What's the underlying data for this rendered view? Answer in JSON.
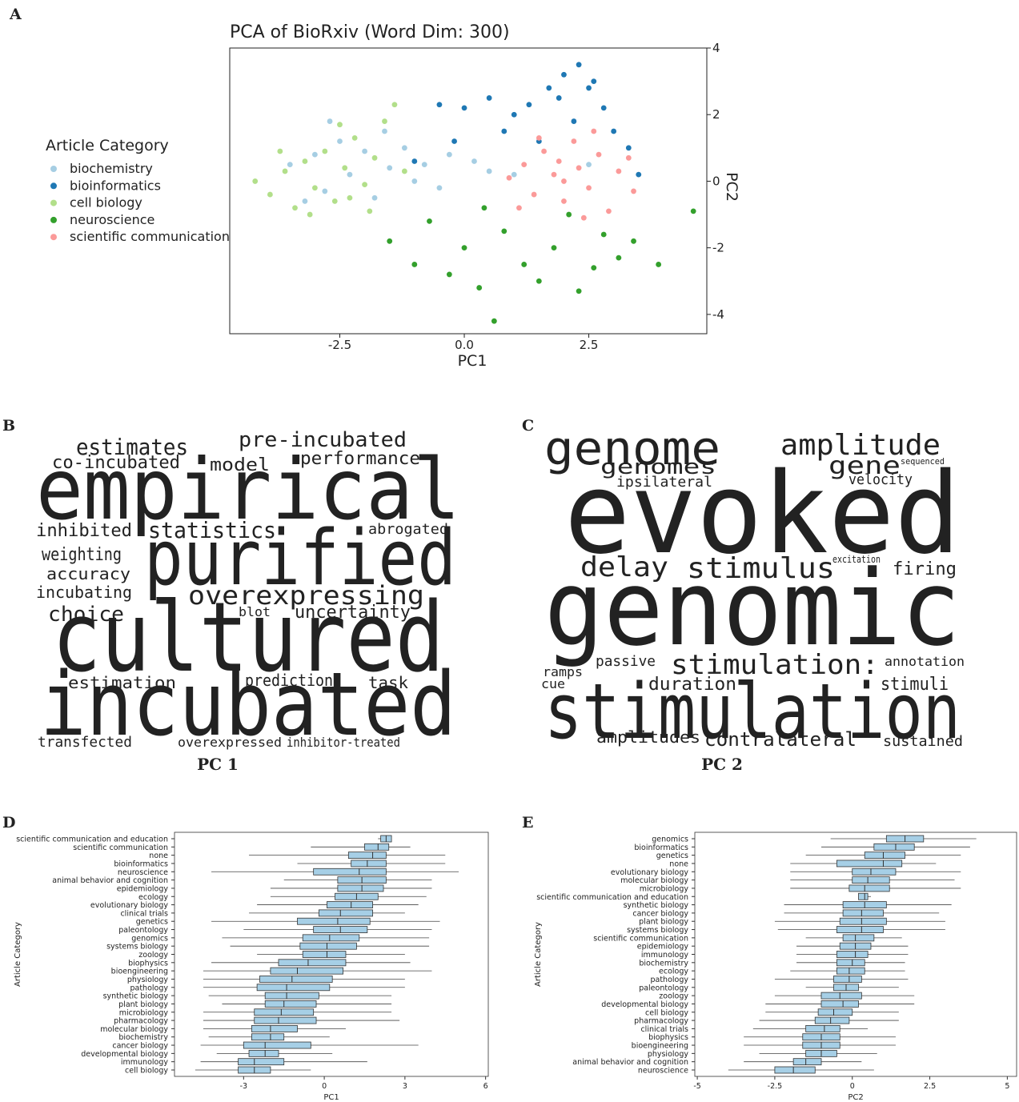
{
  "chart_data": [
    {
      "type": "scatter",
      "panel": "A",
      "title": "PCA of BioRxiv (Word Dim: 300)",
      "xlabel": "PC1",
      "ylabel": "PC2",
      "legend_title": "Article Category",
      "xlim": [
        -4.71,
        4.87
      ],
      "ylim": [
        -4.58,
        4.0
      ],
      "xticks": [
        -2.5,
        {
          "value": 0,
          "label": "0.0"
        },
        2.5
      ],
      "yticks": [
        4,
        2,
        0,
        -2,
        -4
      ],
      "series": [
        {
          "name": "biochemistry",
          "color": "#a6cee3",
          "x": [
            -3.5,
            -3.0,
            -2.8,
            -2.5,
            -2.3,
            -2.0,
            -1.8,
            -1.5,
            -1.2,
            -1.0,
            -0.8,
            -0.5,
            0.2,
            0.5,
            -2.7,
            -3.2,
            -1.6,
            -0.3,
            1.0,
            2.5
          ],
          "y": [
            0.5,
            0.8,
            -0.3,
            1.2,
            0.2,
            0.9,
            -0.5,
            0.4,
            1.0,
            0,
            0.5,
            -0.2,
            0.6,
            0.3,
            1.8,
            -0.6,
            1.5,
            0.8,
            0.2,
            0.5
          ]
        },
        {
          "name": "bioinformatics",
          "color": "#1f78b4",
          "x": [
            -0.5,
            0,
            0.5,
            1.0,
            1.3,
            1.7,
            2.0,
            2.3,
            2.5,
            2.8,
            3.0,
            3.3,
            2.2,
            1.5,
            0.8,
            -0.2,
            2.6,
            1.9,
            3.5,
            -1.0
          ],
          "y": [
            2.3,
            2.2,
            2.5,
            2.0,
            2.3,
            2.8,
            3.2,
            3.5,
            2.8,
            2.2,
            1.5,
            1.0,
            1.8,
            1.2,
            1.5,
            1.2,
            3.0,
            2.5,
            0.2,
            0.6
          ]
        },
        {
          "name": "cell biology",
          "color": "#b2df8a",
          "x": [
            -4.2,
            -3.9,
            -3.6,
            -3.4,
            -3.2,
            -3.0,
            -2.8,
            -2.6,
            -2.4,
            -2.2,
            -2.0,
            -1.8,
            -1.6,
            -1.4,
            -1.9,
            -3.7,
            -2.5,
            -1.2,
            -3.1,
            -2.3
          ],
          "y": [
            0,
            -0.4,
            0.3,
            -0.8,
            0.6,
            -0.2,
            0.9,
            -0.6,
            0.4,
            1.3,
            -0.1,
            0.7,
            1.8,
            2.3,
            -0.9,
            0.9,
            1.7,
            0.3,
            -1.0,
            -0.5
          ]
        },
        {
          "name": "neuroscience",
          "color": "#33a02c",
          "x": [
            -1.5,
            -1.0,
            -0.7,
            -0.3,
            0,
            0.3,
            0.6,
            0.8,
            1.2,
            1.5,
            1.8,
            2.1,
            2.3,
            2.6,
            2.8,
            3.1,
            3.4,
            3.9,
            4.6,
            0.4
          ],
          "y": [
            -1.8,
            -2.5,
            -1.2,
            -2.8,
            -2.0,
            -3.2,
            -4.2,
            -1.5,
            -2.5,
            -3.0,
            -2.0,
            -1.0,
            -3.3,
            -2.6,
            -1.6,
            -2.3,
            -1.8,
            -2.5,
            -0.9,
            -0.8
          ]
        },
        {
          "name": "scientific communication",
          "color": "#fb9a99",
          "x": [
            0.9,
            1.2,
            1.4,
            1.6,
            1.8,
            2.0,
            2.2,
            2.3,
            2.5,
            2.7,
            2.9,
            3.1,
            3.3,
            1.5,
            2.0,
            2.6,
            1.1,
            3.4,
            2.4,
            1.9
          ],
          "y": [
            0.1,
            0.5,
            -0.4,
            0.9,
            0.2,
            -0.6,
            1.2,
            0.4,
            -0.2,
            0.8,
            -0.9,
            0.3,
            0.7,
            1.3,
            0.0,
            1.5,
            -0.8,
            -0.3,
            -1.1,
            0.6
          ]
        }
      ]
    },
    {
      "type": "wordcloud",
      "panel": "B",
      "caption": "PC 1",
      "words": [
        {
          "text": "empirical",
          "color": "#ec8460"
        },
        {
          "text": "purified",
          "color": "#62a6d2"
        },
        {
          "text": "cultured",
          "color": "#62a6d2"
        },
        {
          "text": "incubated",
          "color": "#62a6d2"
        },
        {
          "text": "overexpressing",
          "color": "#62a6d2"
        },
        {
          "text": "statistics",
          "color": "#ec8460"
        },
        {
          "text": "estimates",
          "color": "#ec8460"
        },
        {
          "text": "co-incubated",
          "color": "#62a6d2"
        },
        {
          "text": "pre-incubated",
          "color": "#62a6d2"
        },
        {
          "text": "performance",
          "color": "#ec8460"
        },
        {
          "text": "model",
          "color": "#ec8460"
        },
        {
          "text": "inhibited",
          "color": "#62a6d2"
        },
        {
          "text": "weighting",
          "color": "#ec8460"
        },
        {
          "text": "accuracy",
          "color": "#ec8460"
        },
        {
          "text": "incubating",
          "color": "#62a6d2"
        },
        {
          "text": "choice",
          "color": "#ec8460"
        },
        {
          "text": "uncertainty",
          "color": "#ec8460"
        },
        {
          "text": "estimation",
          "color": "#ec8460"
        },
        {
          "text": "prediction",
          "color": "#ec8460"
        },
        {
          "text": "task",
          "color": "#ec8460"
        },
        {
          "text": "transfected",
          "color": "#62a6d2"
        },
        {
          "text": "overexpressed",
          "color": "#62a6d2"
        },
        {
          "text": "inhibitor-treated",
          "color": "#62a6d2"
        },
        {
          "text": "abrogated",
          "color": "#62a6d2"
        },
        {
          "text": "blot",
          "color": "#62a6d2"
        }
      ]
    },
    {
      "type": "wordcloud",
      "panel": "C",
      "caption": "PC 2",
      "words": [
        {
          "text": "evoked",
          "color": "#62a6d2"
        },
        {
          "text": "genomic",
          "color": "#ec8460"
        },
        {
          "text": "stimulation",
          "color": "#62a6d2"
        },
        {
          "text": "genome",
          "color": "#ec8460"
        },
        {
          "text": "genomes",
          "color": "#ec8460"
        },
        {
          "text": "amplitude",
          "color": "#62a6d2"
        },
        {
          "text": "gene",
          "color": "#ec8460"
        },
        {
          "text": "delay",
          "color": "#62a6d2"
        },
        {
          "text": "stimulus",
          "color": "#62a6d2"
        },
        {
          "text": "stimulation:",
          "color": "#62a6d2"
        },
        {
          "text": "contralateral",
          "color": "#62a6d2"
        },
        {
          "text": "amplitudes",
          "color": "#62a6d2"
        },
        {
          "text": "duration",
          "color": "#62a6d2"
        },
        {
          "text": "passive",
          "color": "#62a6d2"
        },
        {
          "text": "stimuli",
          "color": "#62a6d2"
        },
        {
          "text": "sustained",
          "color": "#62a6d2"
        },
        {
          "text": "firing",
          "color": "#62a6d2"
        },
        {
          "text": "annotation",
          "color": "#ec8460"
        },
        {
          "text": "velocity",
          "color": "#62a6d2"
        },
        {
          "text": "ipsilateral",
          "color": "#62a6d2"
        },
        {
          "text": "ramps",
          "color": "#62a6d2"
        },
        {
          "text": "cue",
          "color": "#62a6d2"
        },
        {
          "text": "sequenced",
          "color": "#ec8460"
        },
        {
          "text": "excitation",
          "color": "#62a6d2"
        }
      ]
    },
    {
      "type": "box",
      "panel": "D",
      "xlabel": "PC1",
      "ylabel": "Article Category",
      "color": "#a6cfe6",
      "xlim": [
        -5.57,
        6.1
      ],
      "xticks": [
        -3,
        0,
        3,
        6
      ],
      "categories": [
        "scientific communication and education",
        "scientific communication",
        "none",
        "bioinformatics",
        "neuroscience",
        "animal behavior and cognition",
        "epidemiology",
        "ecology",
        "evolutionary biology",
        "clinical trials",
        "genetics",
        "paleontology",
        "genomics",
        "systems biology",
        "zoology",
        "biophysics",
        "bioengineering",
        "physiology",
        "pathology",
        "synthetic biology",
        "plant biology",
        "microbiology",
        "pharmacology",
        "molecular biology",
        "biochemistry",
        "cancer biology",
        "developmental biology",
        "immunology",
        "cell biology"
      ],
      "low": [
        2.0,
        -0.5,
        -2.8,
        -1.0,
        -4.2,
        -1.5,
        -2.0,
        -2.0,
        -2.5,
        -2.8,
        -4.2,
        -3.0,
        -3.8,
        -3.5,
        -2.5,
        -4.2,
        -4.5,
        -4.5,
        -4.5,
        -4.3,
        -3.8,
        -4.5,
        -4.5,
        -4.5,
        -4.3,
        -4.6,
        -4.0,
        -4.6,
        -4.8
      ],
      "q1": [
        2.1,
        1.5,
        0.9,
        1.0,
        -0.4,
        0.5,
        0.5,
        0.4,
        0.1,
        -0.2,
        -1.0,
        -0.4,
        -0.8,
        -0.9,
        -0.8,
        -1.7,
        -2.0,
        -2.4,
        -2.5,
        -2.2,
        -2.2,
        -2.6,
        -2.6,
        -2.7,
        -2.7,
        -3.0,
        -2.8,
        -3.2,
        -3.2
      ],
      "median": [
        2.3,
        2.0,
        1.8,
        1.6,
        1.3,
        1.4,
        1.4,
        1.2,
        1.0,
        0.6,
        0.5,
        0.6,
        0.2,
        0.1,
        0.1,
        -0.6,
        -1.0,
        -1.2,
        -1.4,
        -1.4,
        -1.5,
        -1.6,
        -1.7,
        -2.0,
        -2.0,
        -2.2,
        -2.2,
        -2.6,
        -2.6
      ],
      "q3": [
        2.5,
        2.4,
        2.3,
        2.3,
        2.3,
        2.3,
        2.2,
        2.0,
        1.8,
        1.8,
        1.7,
        1.6,
        1.3,
        1.2,
        0.8,
        0.8,
        0.7,
        0.3,
        0.2,
        -0.2,
        -0.3,
        -0.4,
        -0.3,
        -1.0,
        -1.5,
        -0.5,
        -1.7,
        -1.5,
        -2.0
      ],
      "high": [
        2.5,
        3.2,
        4.5,
        4.5,
        5.0,
        4.0,
        4.0,
        3.8,
        3.5,
        3.0,
        4.3,
        4.0,
        3.9,
        3.9,
        3.0,
        3.2,
        4.0,
        3.0,
        3.0,
        2.5,
        2.5,
        2.5,
        2.8,
        0.8,
        0.2,
        3.5,
        0.3,
        1.6,
        -0.5
      ]
    },
    {
      "type": "box",
      "panel": "E",
      "xlabel": "PC2",
      "ylabel": "Article Category",
      "color": "#a6cfe6",
      "xlim": [
        -5.08,
        5.3
      ],
      "xticks": [
        -5,
        -2.5,
        0,
        2.5,
        5
      ],
      "categories": [
        "genomics",
        "bioinformatics",
        "genetics",
        "none",
        "evolutionary biology",
        "molecular biology",
        "microbiology",
        "scientific communication and education",
        "synthetic biology",
        "cancer biology",
        "plant biology",
        "systems biology",
        "scientific communication",
        "epidemiology",
        "immunology",
        "biochemistry",
        "ecology",
        "pathology",
        "paleontology",
        "zoology",
        "developmental biology",
        "cell biology",
        "pharmacology",
        "clinical trials",
        "biophysics",
        "bioengineering",
        "physiology",
        "animal behavior and cognition",
        "neuroscience"
      ],
      "low": [
        -0.7,
        -1.0,
        -1.5,
        -2.0,
        -2.0,
        -2.0,
        -2.0,
        0.2,
        -2.2,
        -2.2,
        -2.5,
        -2.4,
        -1.5,
        -1.8,
        -1.8,
        -1.8,
        -2.0,
        -2.5,
        -1.5,
        -2.5,
        -2.8,
        -2.8,
        -3.0,
        -3.2,
        -3.5,
        -3.5,
        -3.0,
        -3.5,
        -4.0
      ],
      "q1": [
        1.1,
        0.7,
        0.4,
        -0.5,
        0.0,
        0.0,
        -0.1,
        0.2,
        -0.3,
        -0.3,
        -0.4,
        -0.5,
        -0.3,
        -0.4,
        -0.5,
        -0.5,
        -0.5,
        -0.6,
        -0.6,
        -1.0,
        -1.0,
        -1.1,
        -1.2,
        -1.5,
        -1.6,
        -1.6,
        -1.5,
        -1.9,
        -2.5
      ],
      "median": [
        1.7,
        1.4,
        1.0,
        1.0,
        0.6,
        0.5,
        0.4,
        0.4,
        0.4,
        0.3,
        0.3,
        0.3,
        0.1,
        0.1,
        0.1,
        0.0,
        -0.1,
        -0.1,
        -0.2,
        -0.4,
        -0.3,
        -0.6,
        -0.7,
        -0.9,
        -1.0,
        -1.0,
        -1.0,
        -1.5,
        -1.9
      ],
      "q3": [
        2.3,
        2.0,
        1.7,
        1.6,
        1.4,
        1.2,
        1.2,
        0.5,
        1.1,
        1.0,
        1.1,
        1.0,
        0.7,
        0.6,
        0.5,
        0.4,
        0.4,
        0.3,
        0.2,
        0.3,
        0.2,
        0.0,
        -0.1,
        -0.4,
        -0.4,
        -0.4,
        -0.5,
        -1.0,
        -1.2
      ],
      "high": [
        4.0,
        3.8,
        3.5,
        2.7,
        3.5,
        3.3,
        3.5,
        0.6,
        3.2,
        2.8,
        3.0,
        3.0,
        1.6,
        1.8,
        1.8,
        1.7,
        1.7,
        1.8,
        1.5,
        2.0,
        2.0,
        1.5,
        1.5,
        0.5,
        1.4,
        1.4,
        0.8,
        0.3,
        0.7
      ]
    }
  ]
}
